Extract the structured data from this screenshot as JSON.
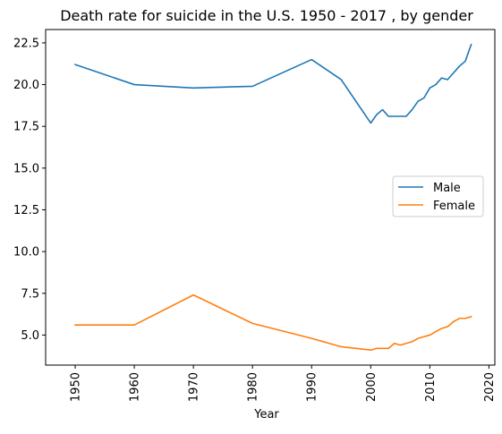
{
  "chart_data": {
    "type": "line",
    "title": "Death rate for suicide in the U.S. 1950 - 2017 , by gender",
    "xlabel": "Year",
    "ylabel": "",
    "xlim": [
      1945,
      2021
    ],
    "ylim": [
      3.2,
      23.3
    ],
    "x_ticks": [
      1950,
      1960,
      1970,
      1980,
      1990,
      2000,
      2010,
      2020
    ],
    "y_ticks": [
      5.0,
      7.5,
      10.0,
      12.5,
      15.0,
      17.5,
      20.0,
      22.5
    ],
    "y_tick_labels": [
      "5.0",
      "7.5",
      "10.0",
      "12.5",
      "15.0",
      "17.5",
      "20.0",
      "22.5"
    ],
    "grid": false,
    "legend_position": "center-right",
    "series": [
      {
        "name": "Male",
        "color": "#1f77b4",
        "x": [
          1950,
          1960,
          1970,
          1980,
          1990,
          1995,
          2000,
          2001,
          2002,
          2003,
          2004,
          2005,
          2006,
          2007,
          2008,
          2009,
          2010,
          2011,
          2012,
          2013,
          2014,
          2015,
          2016,
          2017
        ],
        "y": [
          21.2,
          20.0,
          19.8,
          19.9,
          21.5,
          20.3,
          17.7,
          18.2,
          18.5,
          18.1,
          18.1,
          18.1,
          18.1,
          18.5,
          19.0,
          19.2,
          19.8,
          20.0,
          20.4,
          20.3,
          20.7,
          21.1,
          21.4,
          22.4
        ]
      },
      {
        "name": "Female",
        "color": "#ff7f0e",
        "x": [
          1950,
          1960,
          1970,
          1980,
          1990,
          1995,
          2000,
          2001,
          2002,
          2003,
          2004,
          2005,
          2006,
          2007,
          2008,
          2009,
          2010,
          2011,
          2012,
          2013,
          2014,
          2015,
          2016,
          2017
        ],
        "y": [
          5.6,
          5.6,
          7.4,
          5.7,
          4.8,
          4.3,
          4.1,
          4.2,
          4.2,
          4.2,
          4.5,
          4.4,
          4.5,
          4.6,
          4.8,
          4.9,
          5.0,
          5.2,
          5.4,
          5.5,
          5.8,
          6.0,
          6.0,
          6.1
        ]
      }
    ]
  }
}
